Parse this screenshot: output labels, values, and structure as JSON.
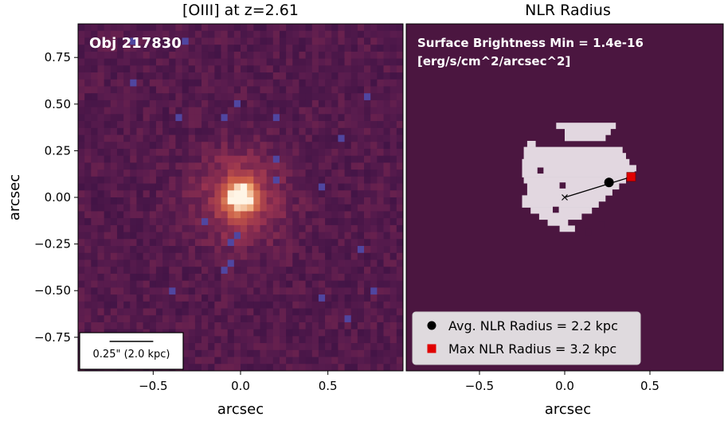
{
  "chart_data": [
    {
      "type": "heatmap",
      "title": "[OIII] at z=2.61",
      "xlabel": "arcsec",
      "ylabel": "arcsec",
      "xlim": [
        -0.93,
        0.93
      ],
      "ylim": [
        -0.93,
        0.93
      ],
      "xticks": [
        "−0.5",
        "0.0",
        "0.5"
      ],
      "xtick_values": [
        -0.5,
        0.0,
        0.5
      ],
      "yticks": [
        "0.75",
        "0.50",
        "0.25",
        "0.00",
        "−0.25",
        "−0.50",
        "−0.75"
      ],
      "ytick_values": [
        0.75,
        0.5,
        0.25,
        0.0,
        -0.25,
        -0.5,
        -0.75
      ],
      "object_label": "Obj 217830",
      "scalebar_label": "0.25\" (2.0 kpc)",
      "scalebar_length_arcsec": 0.25,
      "colormap": "magma-like",
      "peak_position": [
        0.0,
        0.0
      ],
      "colors": {
        "background": "#4a1a46",
        "peak": "#fff3e0"
      }
    },
    {
      "type": "heatmap",
      "title": "NLR Radius",
      "xlabel": "arcsec",
      "xlim": [
        -0.93,
        0.93
      ],
      "ylim": [
        -0.93,
        0.93
      ],
      "xticks": [
        "−0.5",
        "0.0",
        "0.5"
      ],
      "xtick_values": [
        -0.5,
        0.0,
        0.5
      ],
      "annotation_line1": "Surface Brightness Min = 1.4e-16",
      "annotation_line2": "[erg/s/cm^2/arcsec^2]",
      "center": [
        0.0,
        0.0
      ],
      "avg_point": [
        0.26,
        0.08
      ],
      "max_point": [
        0.39,
        0.11
      ],
      "legend": [
        {
          "marker": "circle",
          "color": "#000000",
          "label": "Avg. NLR Radius = 2.2 kpc"
        },
        {
          "marker": "square",
          "color": "#e00000",
          "label": "Max NLR Radius = 3.2 kpc"
        }
      ],
      "legend_position": "lower-left",
      "colors": {
        "background": "#4b1640",
        "mask": "#e2d7e0"
      }
    }
  ]
}
